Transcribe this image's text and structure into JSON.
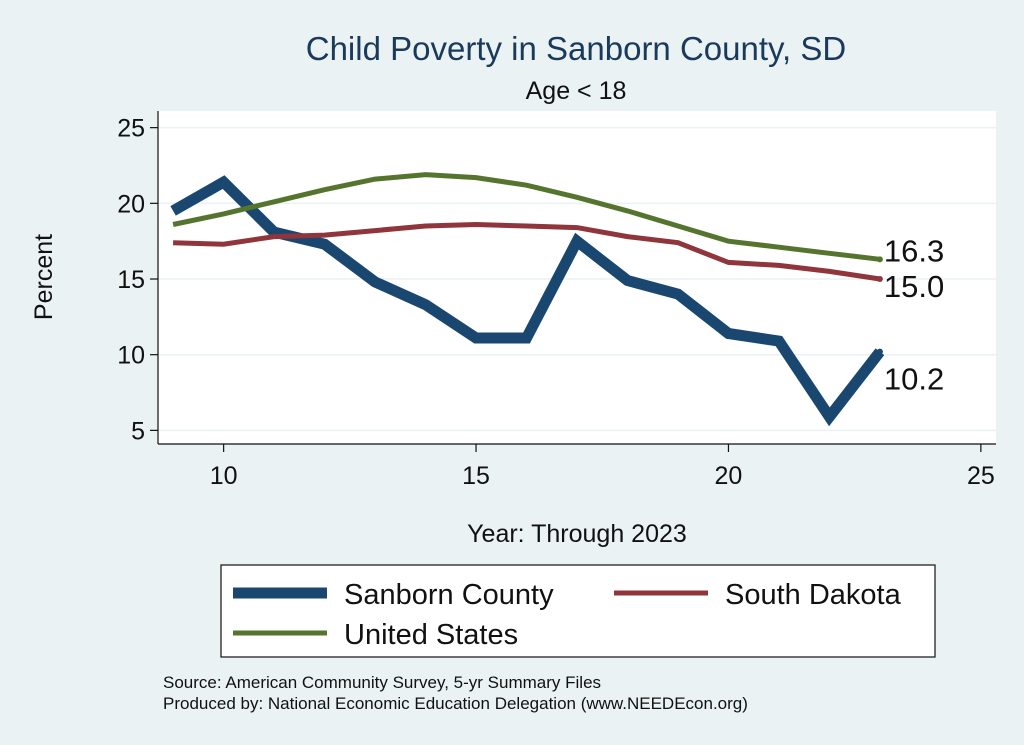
{
  "chart_data": {
    "type": "line",
    "title": "Child Poverty in Sanborn County, SD",
    "subtitle": "Age < 18",
    "xlabel": "Year: Through 2023",
    "ylabel": "Percent",
    "xlim": [
      8.7,
      25.3
    ],
    "ylim": [
      4.1,
      26.1
    ],
    "xticks": [
      10,
      15,
      20,
      25
    ],
    "yticks": [
      5,
      10,
      15,
      20,
      25
    ],
    "x": [
      9,
      10,
      11,
      12,
      13,
      14,
      15,
      16,
      17,
      18,
      19,
      20,
      21,
      22,
      23
    ],
    "series": [
      {
        "name": "Sanborn County",
        "color": "#1a476f",
        "values": [
          19.5,
          21.4,
          18.1,
          17.3,
          14.8,
          13.3,
          11.1,
          11.1,
          17.5,
          14.9,
          14.0,
          11.4,
          10.9,
          5.9,
          10.2
        ],
        "end_label": "10.2"
      },
      {
        "name": "South Dakota",
        "color": "#90353b",
        "values": [
          17.4,
          17.3,
          17.8,
          17.9,
          18.2,
          18.5,
          18.6,
          18.5,
          18.4,
          17.8,
          17.4,
          16.1,
          15.9,
          15.5,
          15.0
        ],
        "end_label": "15.0"
      },
      {
        "name": "United States",
        "color": "#55752f",
        "values": [
          18.6,
          19.3,
          20.1,
          20.9,
          21.6,
          21.9,
          21.7,
          21.2,
          20.4,
          19.5,
          18.5,
          17.5,
          17.1,
          16.7,
          16.3
        ],
        "end_label": "16.3"
      }
    ],
    "grid": true,
    "legend_position": "bottom"
  },
  "source_lines": [
    "Source: American Community Survey, 5-yr Summary Files",
    "Produced by: National Economic Education Delegation (www.NEEDEcon.org)"
  ]
}
